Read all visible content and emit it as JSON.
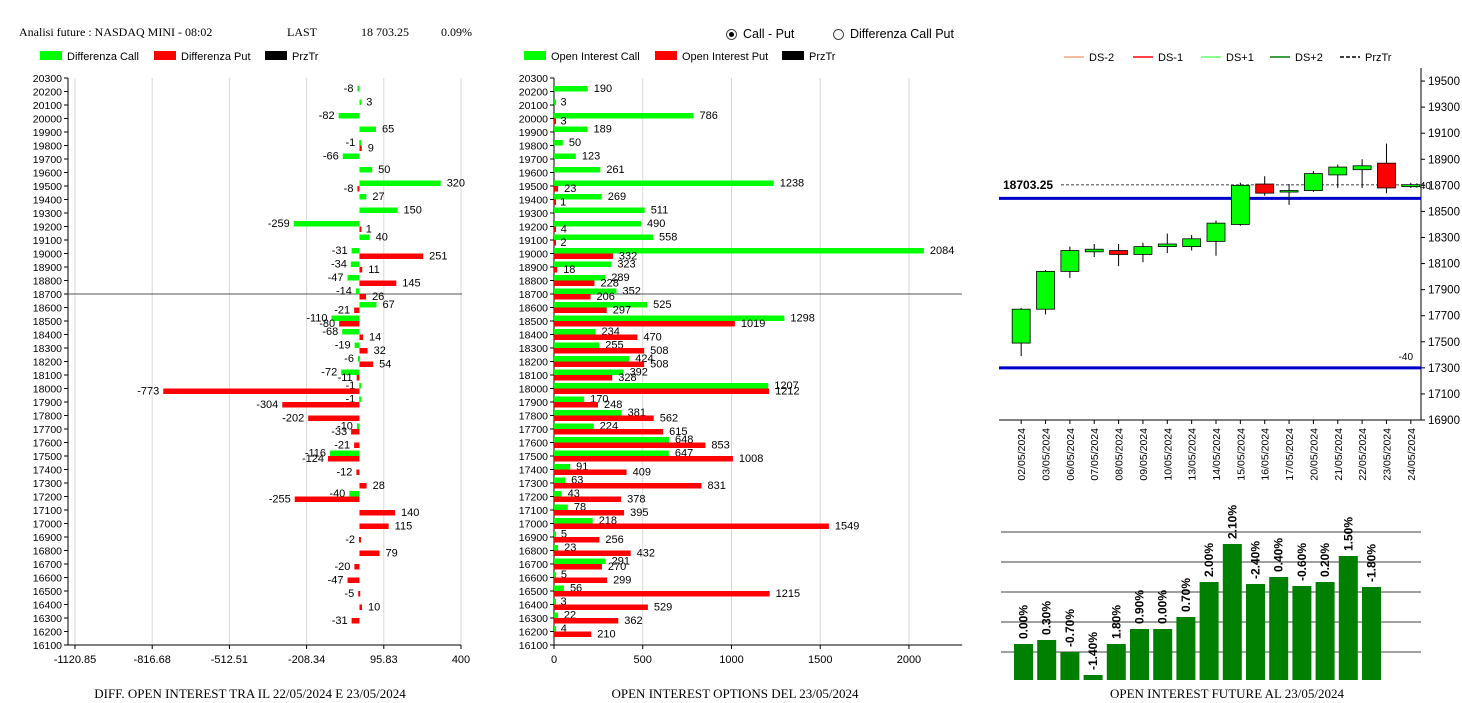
{
  "header": {
    "title": "Analisi future : NASDAQ MINI - 08:02",
    "last_label": "LAST",
    "last_value": "18 703.25",
    "change": "0.09%"
  },
  "view_toggle": {
    "options": [
      {
        "label": "Call - Put",
        "selected": true
      },
      {
        "label": "Differenza Call Put",
        "selected": false
      }
    ]
  },
  "captions": {
    "left": "DIFF. OPEN INTEREST TRA IL 22/05/2024 E 23/05/2024",
    "middle": "OPEN INTEREST OPTIONS DEL 23/05/2024",
    "right": "OPEN INTEREST FUTURE AL 23/05/2024"
  },
  "colors": {
    "call": "#00ff00",
    "put": "#ff0000",
    "price": "#000000",
    "level_line": "#0000cc",
    "oi_bar": "#008000"
  },
  "chart_data": [
    {
      "type": "bar",
      "orientation": "horizontal",
      "legend": [
        "Differenza Call",
        "Differenza Put",
        "PrzTr"
      ],
      "categories": [
        "20300",
        "20200",
        "20100",
        "20000",
        "19900",
        "19800",
        "19700",
        "19600",
        "19500",
        "19400",
        "19300",
        "19200",
        "19100",
        "19000",
        "18900",
        "18800",
        "18700",
        "18600",
        "18500",
        "18400",
        "18300",
        "18200",
        "18100",
        "18000",
        "17900",
        "17800",
        "17700",
        "17600",
        "17500",
        "17400",
        "17300",
        "17200",
        "17100",
        "17000",
        "16900",
        "16800",
        "16700",
        "16600",
        "16500",
        "16400",
        "16300",
        "16200",
        "16100"
      ],
      "series": [
        {
          "name": "Differenza Call",
          "values": [
            null,
            -8,
            3,
            -82,
            65,
            -1,
            -66,
            50,
            320,
            27,
            150,
            -259,
            40,
            -31,
            -34,
            -47,
            -14,
            67,
            -110,
            -68,
            -19,
            -6,
            -72,
            -1,
            -1,
            null,
            -10,
            null,
            -116,
            null,
            null,
            -40,
            null,
            null,
            null,
            null,
            null,
            null,
            null,
            null,
            null,
            null,
            null
          ]
        },
        {
          "name": "Differenza Put",
          "values": [
            null,
            null,
            null,
            null,
            null,
            9,
            null,
            null,
            -8,
            null,
            null,
            1,
            null,
            251,
            11,
            145,
            26,
            -21,
            -80,
            14,
            32,
            54,
            -11,
            -773,
            -304,
            -202,
            -33,
            -21,
            -124,
            -12,
            28,
            -255,
            140,
            115,
            -2,
            79,
            -20,
            -47,
            -5,
            10,
            -31,
            null,
            null
          ]
        }
      ],
      "price_level": "18700",
      "xticks": [
        "-1120.85",
        "-816.68",
        "-512.51",
        "-208.34",
        "95.83",
        "400"
      ],
      "xlim": [
        -1120.85,
        400
      ]
    },
    {
      "type": "bar",
      "orientation": "horizontal",
      "legend": [
        "Open Interest Call",
        "Open Interest Put",
        "PrzTr"
      ],
      "categories": [
        "20300",
        "20200",
        "20100",
        "20000",
        "19900",
        "19800",
        "19700",
        "19600",
        "19500",
        "19400",
        "19300",
        "19200",
        "19100",
        "19000",
        "18900",
        "18800",
        "18700",
        "18600",
        "18500",
        "18400",
        "18300",
        "18200",
        "18100",
        "18000",
        "17900",
        "17800",
        "17700",
        "17600",
        "17500",
        "17400",
        "17300",
        "17200",
        "17100",
        "17000",
        "16900",
        "16800",
        "16700",
        "16600",
        "16500",
        "16400",
        "16300",
        "16200",
        "16100"
      ],
      "series": [
        {
          "name": "Open Interest Call",
          "values": [
            null,
            190,
            3,
            786,
            189,
            50,
            123,
            261,
            1238,
            269,
            511,
            490,
            558,
            2084,
            323,
            289,
            352,
            525,
            1298,
            234,
            255,
            424,
            392,
            1207,
            170,
            381,
            224,
            648,
            647,
            91,
            63,
            43,
            78,
            218,
            5,
            23,
            291,
            5,
            56,
            3,
            22,
            4,
            null
          ]
        },
        {
          "name": "Open Interest Put",
          "values": [
            null,
            null,
            null,
            3,
            null,
            null,
            null,
            null,
            23,
            1,
            null,
            4,
            2,
            332,
            18,
            228,
            206,
            297,
            1019,
            470,
            508,
            508,
            328,
            1212,
            248,
            562,
            615,
            853,
            1008,
            409,
            831,
            378,
            395,
            1549,
            256,
            432,
            270,
            299,
            1215,
            529,
            362,
            210,
            null
          ]
        }
      ],
      "price_level": "18700",
      "xticks": [
        "0",
        "500",
        "1000",
        "1500",
        "2000"
      ],
      "xlim": [
        0,
        2300
      ]
    },
    {
      "type": "candlestick",
      "legend": [
        "DS-2",
        "DS-1",
        "DS+1",
        "DS+2",
        "PrzTr"
      ],
      "legend_colors": [
        "#f4a582",
        "#ff0000",
        "#66ff66",
        "#008000",
        "#000000"
      ],
      "price_label": "18703.25",
      "price": 18703.25,
      "level_lines": [
        18600,
        17300
      ],
      "side_labels": [
        "+40",
        "-40"
      ],
      "yticks": [
        "19500",
        "19300",
        "19100",
        "18900",
        "18700",
        "18500",
        "18300",
        "18100",
        "17900",
        "17700",
        "17500",
        "17300",
        "17100",
        "16900"
      ],
      "ylim": [
        16900,
        19600
      ],
      "dates": [
        "02/05/2024",
        "03/05/2024",
        "06/05/2024",
        "07/05/2024",
        "08/05/2024",
        "09/05/2024",
        "10/05/2024",
        "13/05/2024",
        "14/05/2024",
        "15/05/2024",
        "16/05/2024",
        "17/05/2024",
        "20/05/2024",
        "21/05/2024",
        "22/05/2024",
        "23/05/2024",
        "24/05/2024"
      ],
      "candles": [
        {
          "o": 17490,
          "h": 17760,
          "l": 17390,
          "c": 17750
        },
        {
          "o": 17750,
          "h": 18050,
          "l": 17710,
          "c": 18040
        },
        {
          "o": 18040,
          "h": 18230,
          "l": 17990,
          "c": 18200
        },
        {
          "o": 18190,
          "h": 18250,
          "l": 18150,
          "c": 18210
        },
        {
          "o": 18200,
          "h": 18250,
          "l": 18080,
          "c": 18170
        },
        {
          "o": 18170,
          "h": 18260,
          "l": 18110,
          "c": 18230
        },
        {
          "o": 18230,
          "h": 18330,
          "l": 18180,
          "c": 18250
        },
        {
          "o": 18230,
          "h": 18320,
          "l": 18200,
          "c": 18290
        },
        {
          "o": 18270,
          "h": 18430,
          "l": 18160,
          "c": 18410
        },
        {
          "o": 18400,
          "h": 18720,
          "l": 18390,
          "c": 18700
        },
        {
          "o": 18710,
          "h": 18770,
          "l": 18620,
          "c": 18640
        },
        {
          "o": 18650,
          "h": 18710,
          "l": 18550,
          "c": 18660
        },
        {
          "o": 18660,
          "h": 18810,
          "l": 18650,
          "c": 18790
        },
        {
          "o": 18780,
          "h": 18860,
          "l": 18680,
          "c": 18840
        },
        {
          "o": 18820,
          "h": 18900,
          "l": 18680,
          "c": 18850
        },
        {
          "o": 18870,
          "h": 19020,
          "l": 18640,
          "c": 18680
        },
        {
          "o": 18690,
          "h": 18720,
          "l": 18680,
          "c": 18705
        }
      ]
    },
    {
      "type": "bar",
      "categories": [
        "02/05/2024",
        "03/05/2024",
        "06/05/2024",
        "07/05/2024",
        "08/05/2024",
        "09/05/2024",
        "10/05/2024",
        "13/05/2024",
        "14/05/2024",
        "15/05/2024",
        "16/05/2024",
        "17/05/2024",
        "20/05/2024",
        "21/05/2024",
        "22/05/2024",
        "23/05/2024"
      ],
      "data_labels": [
        "0.00%",
        "0.30%",
        "-0.70%",
        "-1.40%",
        "1.80%",
        "0.90%",
        "0.00%",
        "0.70%",
        "2.00%",
        "2.10%",
        "-2.40%",
        "0.40%",
        "-0.60%",
        "0.20%",
        "1.50%",
        "-1.80%"
      ],
      "heights": [
        36,
        40,
        28,
        5,
        36,
        51,
        51,
        63,
        98,
        136,
        96,
        103,
        94,
        98,
        124,
        93
      ],
      "height_units": "relative open interest level (unlabeled axis)"
    }
  ]
}
